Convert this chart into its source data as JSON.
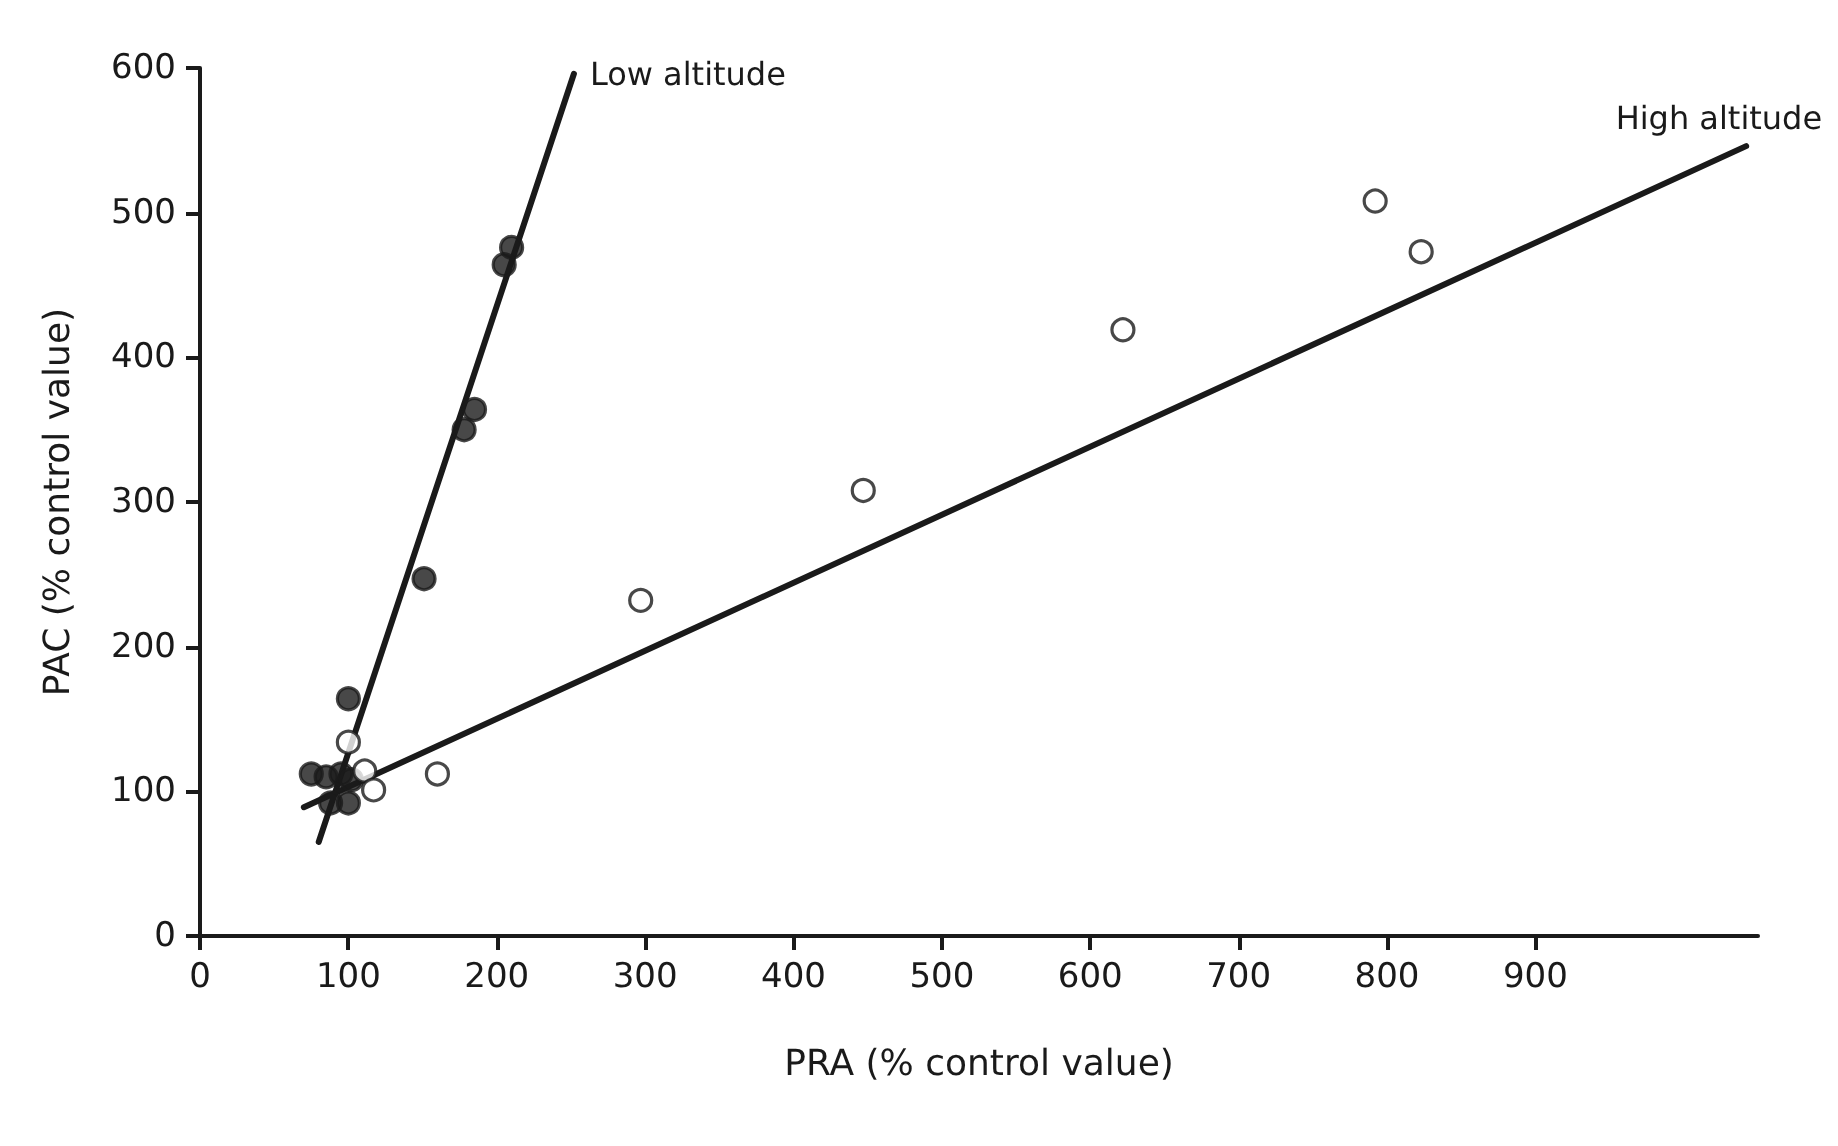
{
  "chart_data": {
    "type": "scatter",
    "xlabel": "PRA (% control value)",
    "ylabel": "PAC (% control value)",
    "xlim": [
      0,
      1050
    ],
    "xticks": [
      0,
      100,
      200,
      300,
      400,
      500,
      600,
      700,
      800,
      900
    ],
    "ylim": [
      0,
      600
    ],
    "yticks": [
      0,
      100,
      200,
      300,
      400,
      500,
      600
    ],
    "grid": false,
    "legend": false,
    "marker": "circle",
    "series": [
      {
        "type": "scatter",
        "color": "#1a1a1a",
        "x": [
          210,
          205,
          185,
          178,
          151,
          100,
          75,
          85,
          100,
          95,
          102,
          88
        ],
        "values": [
          476,
          464,
          364,
          350,
          247,
          164,
          112,
          110,
          92,
          112,
          108,
          92
        ]
      },
      {
        "type": "scatter",
        "color": "#ffffff",
        "x": [
          100,
          111,
          117,
          160,
          297,
          447,
          622,
          792,
          823
        ],
        "values": [
          134,
          114,
          101,
          112,
          232,
          308,
          419,
          508,
          473
        ]
      },
      {
        "type": "line",
        "name": "Low altitude",
        "color": "#1a1a1a",
        "marker": "none",
        "x": [
          80,
          252
        ],
        "values": [
          65,
          596
        ]
      },
      {
        "type": "line",
        "name": "High altitude",
        "color": "#1a1a1a",
        "marker": "none",
        "x": [
          70,
          1042
        ],
        "values": [
          89,
          546
        ]
      }
    ]
  }
}
